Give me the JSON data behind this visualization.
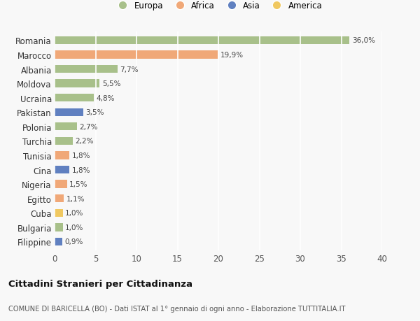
{
  "countries": [
    "Romania",
    "Marocco",
    "Albania",
    "Moldova",
    "Ucraina",
    "Pakistan",
    "Polonia",
    "Turchia",
    "Tunisia",
    "Cina",
    "Nigeria",
    "Egitto",
    "Cuba",
    "Bulgaria",
    "Filippine"
  ],
  "values": [
    36.0,
    19.9,
    7.7,
    5.5,
    4.8,
    3.5,
    2.7,
    2.2,
    1.8,
    1.8,
    1.5,
    1.1,
    1.0,
    1.0,
    0.9
  ],
  "labels": [
    "36,0%",
    "19,9%",
    "7,7%",
    "5,5%",
    "4,8%",
    "3,5%",
    "2,7%",
    "2,2%",
    "1,8%",
    "1,8%",
    "1,5%",
    "1,1%",
    "1,0%",
    "1,0%",
    "0,9%"
  ],
  "continents": [
    "Europa",
    "Africa",
    "Europa",
    "Europa",
    "Europa",
    "Asia",
    "Europa",
    "Europa",
    "Africa",
    "Asia",
    "Africa",
    "Africa",
    "America",
    "Europa",
    "Asia"
  ],
  "continent_colors": {
    "Europa": "#a8c08a",
    "Africa": "#f0a878",
    "Asia": "#6080c0",
    "America": "#f0c860"
  },
  "legend_order": [
    "Europa",
    "Africa",
    "Asia",
    "America"
  ],
  "xlim": [
    0,
    40
  ],
  "xticks": [
    0,
    5,
    10,
    15,
    20,
    25,
    30,
    35,
    40
  ],
  "title": "Cittadini Stranieri per Cittadinanza",
  "subtitle": "COMUNE DI BARICELLA (BO) - Dati ISTAT al 1° gennaio di ogni anno - Elaborazione TUTTITALIA.IT",
  "bg_color": "#f8f8f8",
  "grid_color": "#ffffff",
  "bar_height": 0.55
}
